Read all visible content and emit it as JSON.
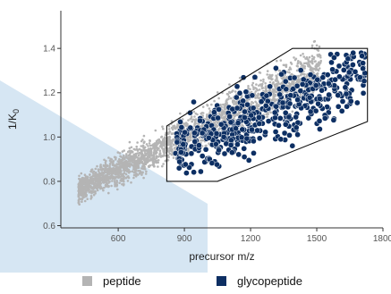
{
  "chart_data": {
    "type": "scatter",
    "xlabel": "precursor m/z",
    "ylabel_main": "1/K",
    "ylabel_sub": "0",
    "xlim": [
      340,
      1800
    ],
    "ylim": [
      0.59,
      1.57
    ],
    "x_ticks": [
      600,
      900,
      1200,
      1500,
      1800
    ],
    "y_ticks": [
      0.6,
      0.8,
      1.0,
      1.2,
      1.4
    ],
    "x_tick_labels": [
      "600",
      "900",
      "1200",
      "1500",
      "1800"
    ],
    "y_tick_labels": [
      "0.6",
      "0.8",
      "1.0",
      "1.2",
      "1.4"
    ],
    "grid": false,
    "legend_position": "bottom",
    "series": [
      {
        "name": "peptide",
        "color": "#b4b4b4",
        "density_description": "dense diagonal band rising from about m/z 420 at 1/K0 0.67-0.85 up to about m/z 1500 at 1/K0 1.2-1.52"
      },
      {
        "name": "glycopeptide",
        "color": "#0d2f63",
        "density_description": "cluster from m/z 860 to 1720, 1/K0 0.82 to 1.40"
      }
    ],
    "annotations": [
      {
        "type": "polygon",
        "description": "boundary around glycopeptide region",
        "vertices": [
          [
            820,
            0.8
          ],
          [
            820,
            1.05
          ],
          [
            1390,
            1.4
          ],
          [
            1730,
            1.4
          ],
          [
            1730,
            1.07
          ],
          [
            1050,
            0.8
          ]
        ]
      }
    ]
  },
  "legend": {
    "items": [
      {
        "label": "peptide",
        "color": "#b4b4b4"
      },
      {
        "label": "glycopeptide",
        "color": "#0d2f63"
      }
    ]
  },
  "overlay": {
    "color": "#d6e6f3"
  }
}
